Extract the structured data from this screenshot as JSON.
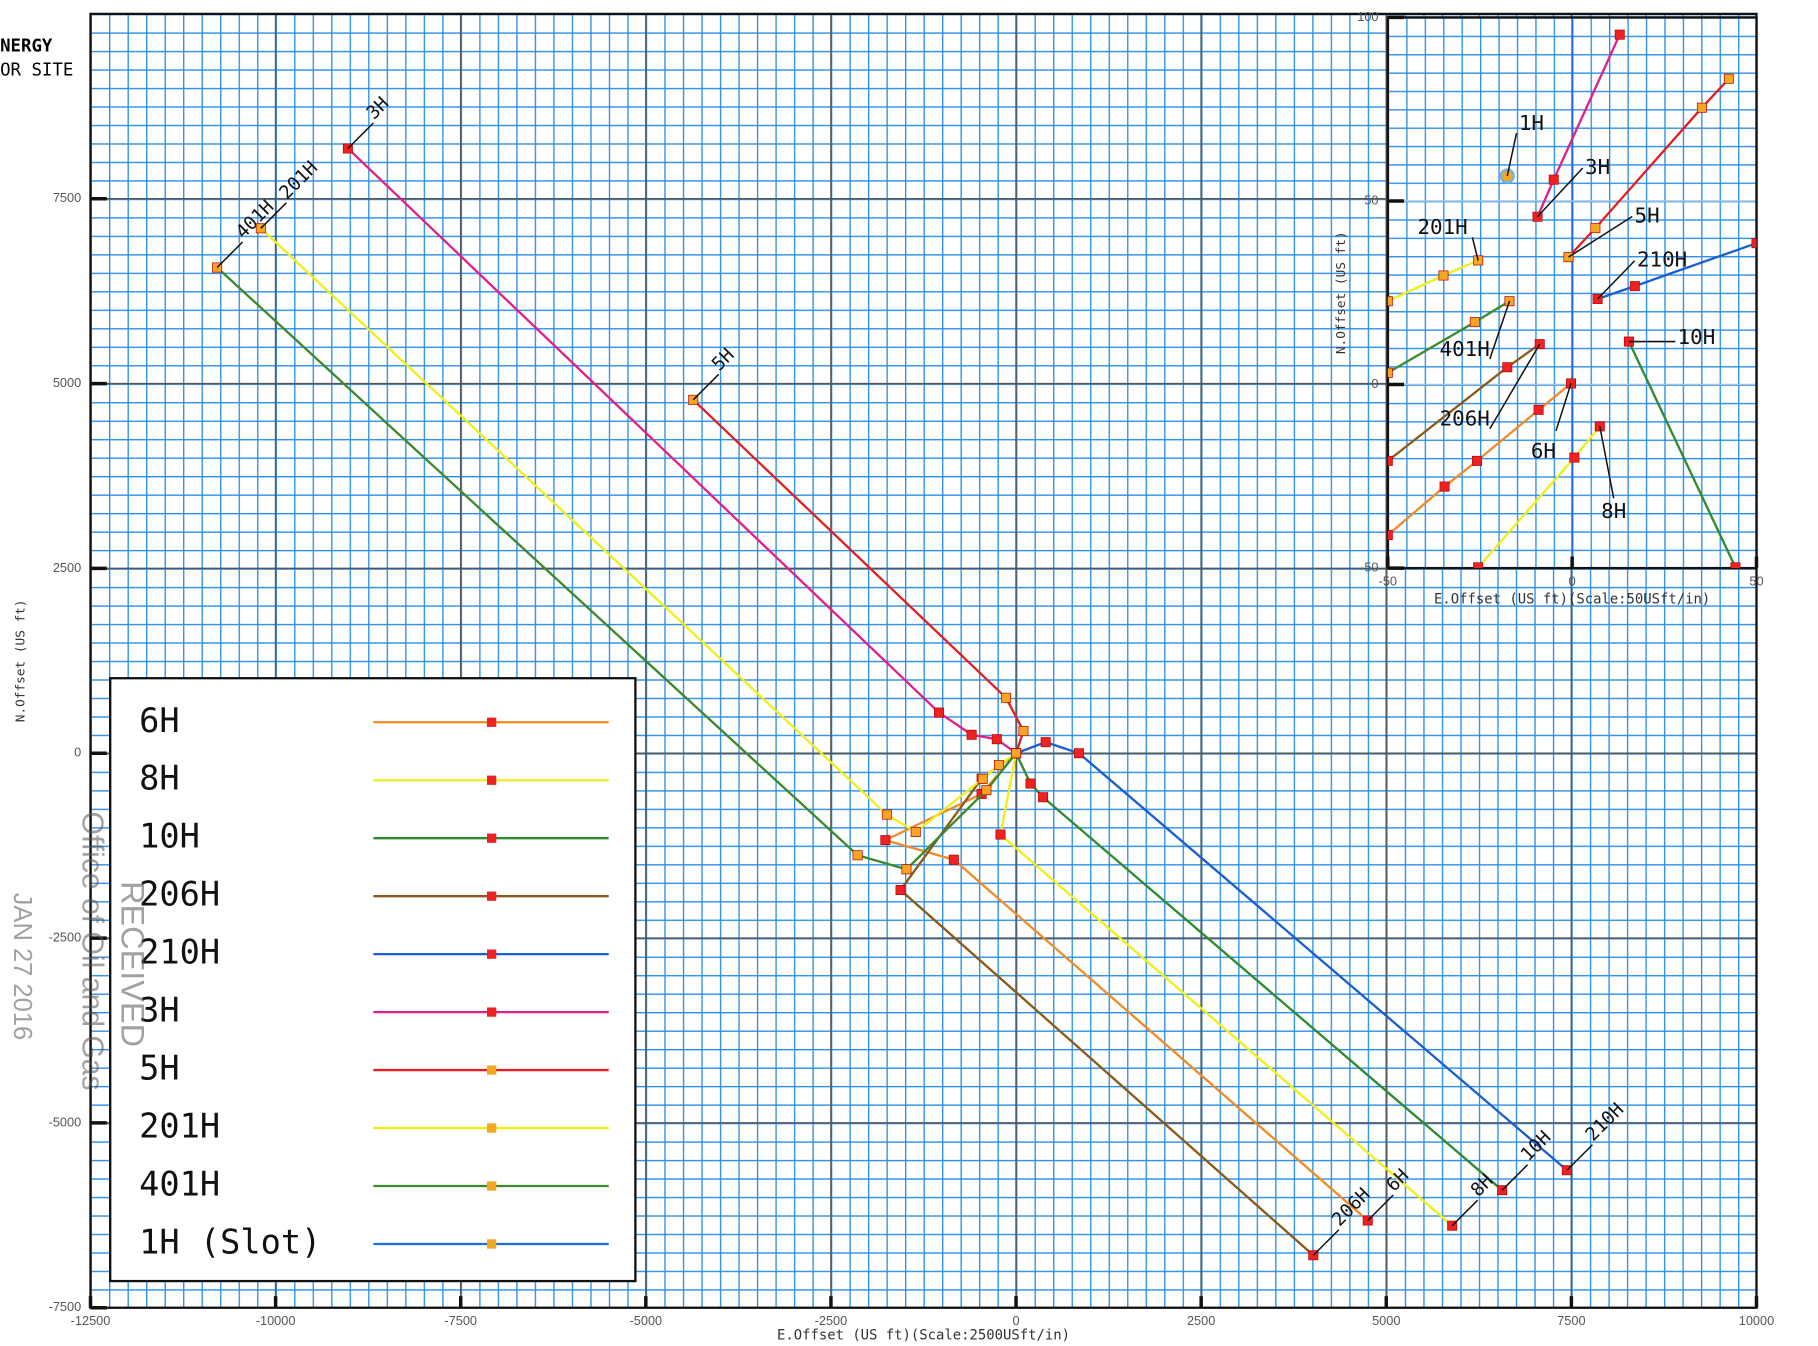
{
  "header": [
    "NERGY",
    "OR SITE"
  ],
  "stamp": [
    "Office of Oil and Gas",
    "RECEIVED",
    "JAN 27 2016"
  ],
  "chart_data": [
    {
      "type": "line",
      "x_label": "E.Offset (US ft)(Scale:2500USft/in)",
      "y_label": "N.Offset (US ft)",
      "xlim": [
        -12500,
        10000
      ],
      "ylim": [
        -7500,
        10000
      ],
      "xticks": [
        -12500,
        -10000,
        -7500,
        -5000,
        -2500,
        0,
        2500,
        5000,
        7500,
        10000
      ],
      "yticks": [
        -7500,
        -5000,
        -2500,
        0,
        2500,
        5000,
        7500
      ],
      "grid": true,
      "series": [
        {
          "name": "6H",
          "color": "#f08c28",
          "marker_color": "#ee2222",
          "x": [
            0,
            -465,
            -1765,
            -840,
            4750
          ],
          "values": [
            0,
            -550,
            -1175,
            -1440,
            -6320
          ]
        },
        {
          "name": "8H",
          "color": "#f2ee1a",
          "marker_color": "#ee2222",
          "x": [
            0,
            -210,
            5890
          ],
          "values": [
            0,
            -1100,
            -6390
          ]
        },
        {
          "name": "10H",
          "color": "#2e8b2e",
          "marker_color": "#ee2222",
          "x": [
            0,
            195,
            365,
            6565
          ],
          "values": [
            0,
            -410,
            -595,
            -5910
          ]
        },
        {
          "name": "206H",
          "color": "#8b5a1a",
          "marker_color": "#ee2222",
          "x": [
            0,
            -465,
            -1560,
            4015
          ],
          "values": [
            0,
            -345,
            -1850,
            -6790
          ]
        },
        {
          "name": "210H",
          "color": "#1a5fd0",
          "marker_color": "#ee2222",
          "x": [
            0,
            400,
            850,
            7440
          ],
          "values": [
            0,
            150,
            0,
            -5640
          ]
        },
        {
          "name": "3H",
          "color": "#e0208a",
          "marker_color": "#ee2222",
          "x": [
            0,
            -260,
            -600,
            -1040,
            -9024
          ],
          "values": [
            0,
            190,
            250,
            550,
            8180
          ]
        },
        {
          "name": "5H",
          "color": "#e02020",
          "marker_color": "#f5a623",
          "x": [
            0,
            100,
            -135,
            -4360
          ],
          "values": [
            0,
            300,
            750,
            4780
          ]
        },
        {
          "name": "201H",
          "color": "#f2ee1a",
          "marker_color": "#f5a623",
          "x": [
            0,
            -230,
            -450,
            -1355,
            -1745,
            -10200
          ],
          "values": [
            0,
            -160,
            -345,
            -1065,
            -830,
            7100
          ]
        },
        {
          "name": "401H",
          "color": "#3a8a2a",
          "marker_color": "#f5a623",
          "x": [
            0,
            -400,
            -1480,
            -2140,
            -10790
          ],
          "values": [
            0,
            -500,
            -1570,
            -1380,
            6570
          ]
        },
        {
          "name": "1H (Slot)",
          "color": "#2070d0",
          "marker_color": "#f5a623",
          "x": [
            0
          ],
          "values": [
            0
          ]
        }
      ]
    },
    {
      "type": "line",
      "x_label": "E.Offset (US ft)(Scale:50USft/in)",
      "y_label": "N.Offset (US ft)",
      "xlim": [
        -50,
        50
      ],
      "ylim": [
        -50,
        100
      ],
      "xticks": [
        -50,
        0,
        50
      ],
      "yticks": [
        -50,
        0,
        50,
        100
      ],
      "grid": true,
      "series": [
        {
          "name": "1H",
          "color": "#2070d0",
          "marker_color": "#f5a623",
          "x": [
            -17.6
          ],
          "values": [
            56.8
          ]
        },
        {
          "name": "3H",
          "color": "#e0208a",
          "marker_color": "#ee2222",
          "x": [
            -9.4,
            -5,
            12.9
          ],
          "values": [
            45.7,
            55.8,
            95.3
          ]
        },
        {
          "name": "5H",
          "color": "#e02020",
          "marker_color": "#f5a623",
          "x": [
            -1,
            6.3,
            35.2,
            42.5
          ],
          "values": [
            34.7,
            42.6,
            75.4,
            83.3
          ]
        },
        {
          "name": "210H",
          "color": "#1a5fd0",
          "marker_color": "#ee2222",
          "x": [
            6.9,
            17,
            50
          ],
          "values": [
            23.3,
            26.8,
            38.5
          ]
        },
        {
          "name": "10H",
          "color": "#2e8b2e",
          "marker_color": "#ee2222",
          "x": [
            15.4,
            44.3
          ],
          "values": [
            11.7,
            -49.8
          ]
        },
        {
          "name": "201H",
          "color": "#f2ee1a",
          "marker_color": "#f5a623",
          "x": [
            -25.5,
            -34.9,
            -50
          ],
          "values": [
            33.8,
            29.7,
            22.7
          ]
        },
        {
          "name": "401H",
          "color": "#3a8a2a",
          "marker_color": "#f5a623",
          "x": [
            -17,
            -26.4,
            -50
          ],
          "values": [
            22.7,
            17,
            3.2
          ]
        },
        {
          "name": "206H",
          "color": "#8b5a1a",
          "marker_color": "#ee2222",
          "x": [
            -8.8,
            -17.6,
            -50
          ],
          "values": [
            11,
            4.7,
            -20.8
          ]
        },
        {
          "name": "6H",
          "color": "#f08c28",
          "marker_color": "#ee2222",
          "x": [
            -0.3,
            -9.1,
            -25.8,
            -34.6,
            -50
          ],
          "values": [
            0.3,
            -6.9,
            -20.8,
            -27.8,
            -41
          ]
        },
        {
          "name": "8H",
          "color": "#f2ee1a",
          "marker_color": "#ee2222",
          "x": [
            7.5,
            0.6,
            -25.5
          ],
          "values": [
            -11.4,
            -19.9,
            -49.8
          ]
        }
      ]
    }
  ]
}
